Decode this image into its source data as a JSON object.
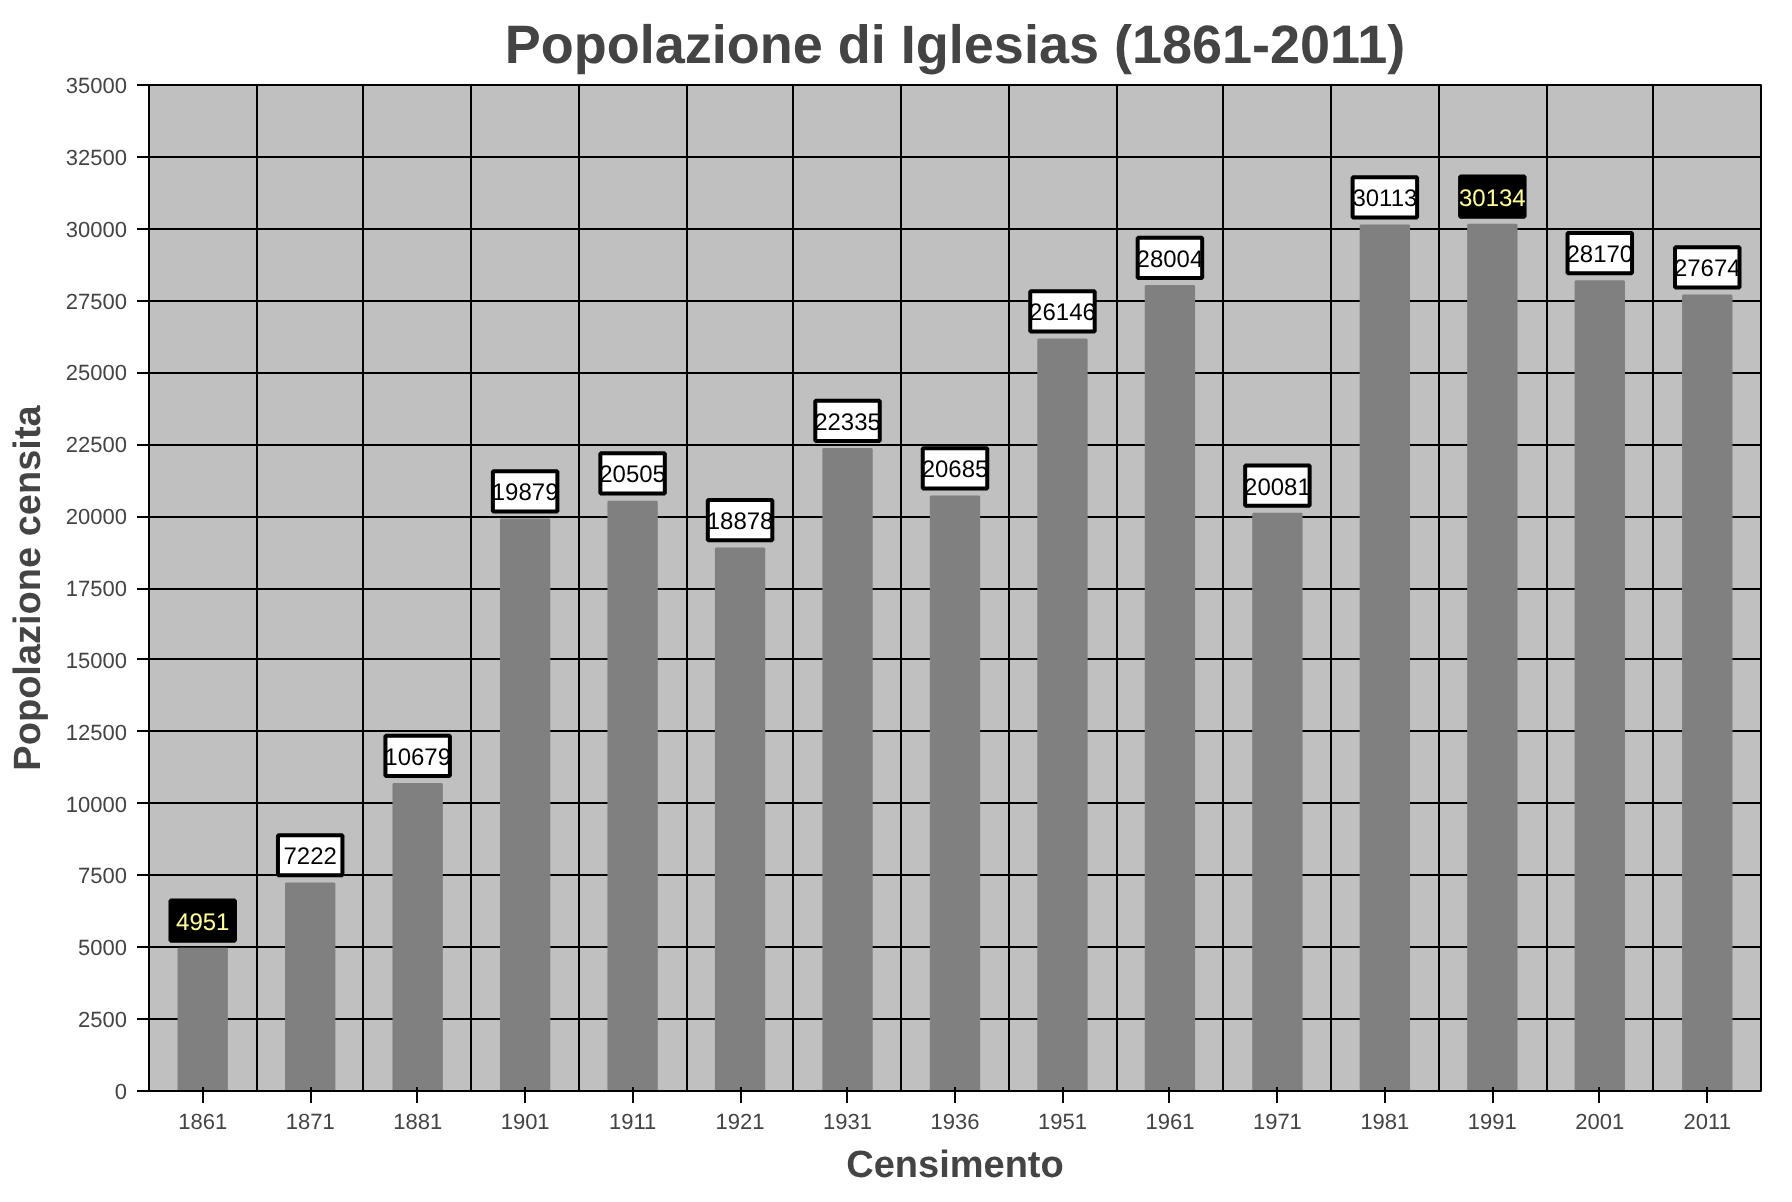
{
  "chart_data": {
    "type": "bar",
    "title": "Popolazione di Iglesias (1861-2011)",
    "xlabel": "Censimento",
    "ylabel": "Popolazione censita",
    "categories": [
      "1861",
      "1871",
      "1881",
      "1901",
      "1911",
      "1921",
      "1931",
      "1936",
      "1951",
      "1961",
      "1971",
      "1981",
      "1991",
      "2001",
      "2011"
    ],
    "values": [
      4951,
      7222,
      10679,
      19879,
      20505,
      18878,
      22335,
      20685,
      26146,
      28004,
      20081,
      30113,
      30134,
      28170,
      27674
    ],
    "color": "#808080",
    "ylim": [
      0,
      35000
    ],
    "yticks": [
      0,
      2500,
      5000,
      7500,
      10000,
      12500,
      15000,
      17500,
      20000,
      22500,
      25000,
      27500,
      30000,
      32500,
      35000
    ],
    "grid": true,
    "data_labels": true
  }
}
